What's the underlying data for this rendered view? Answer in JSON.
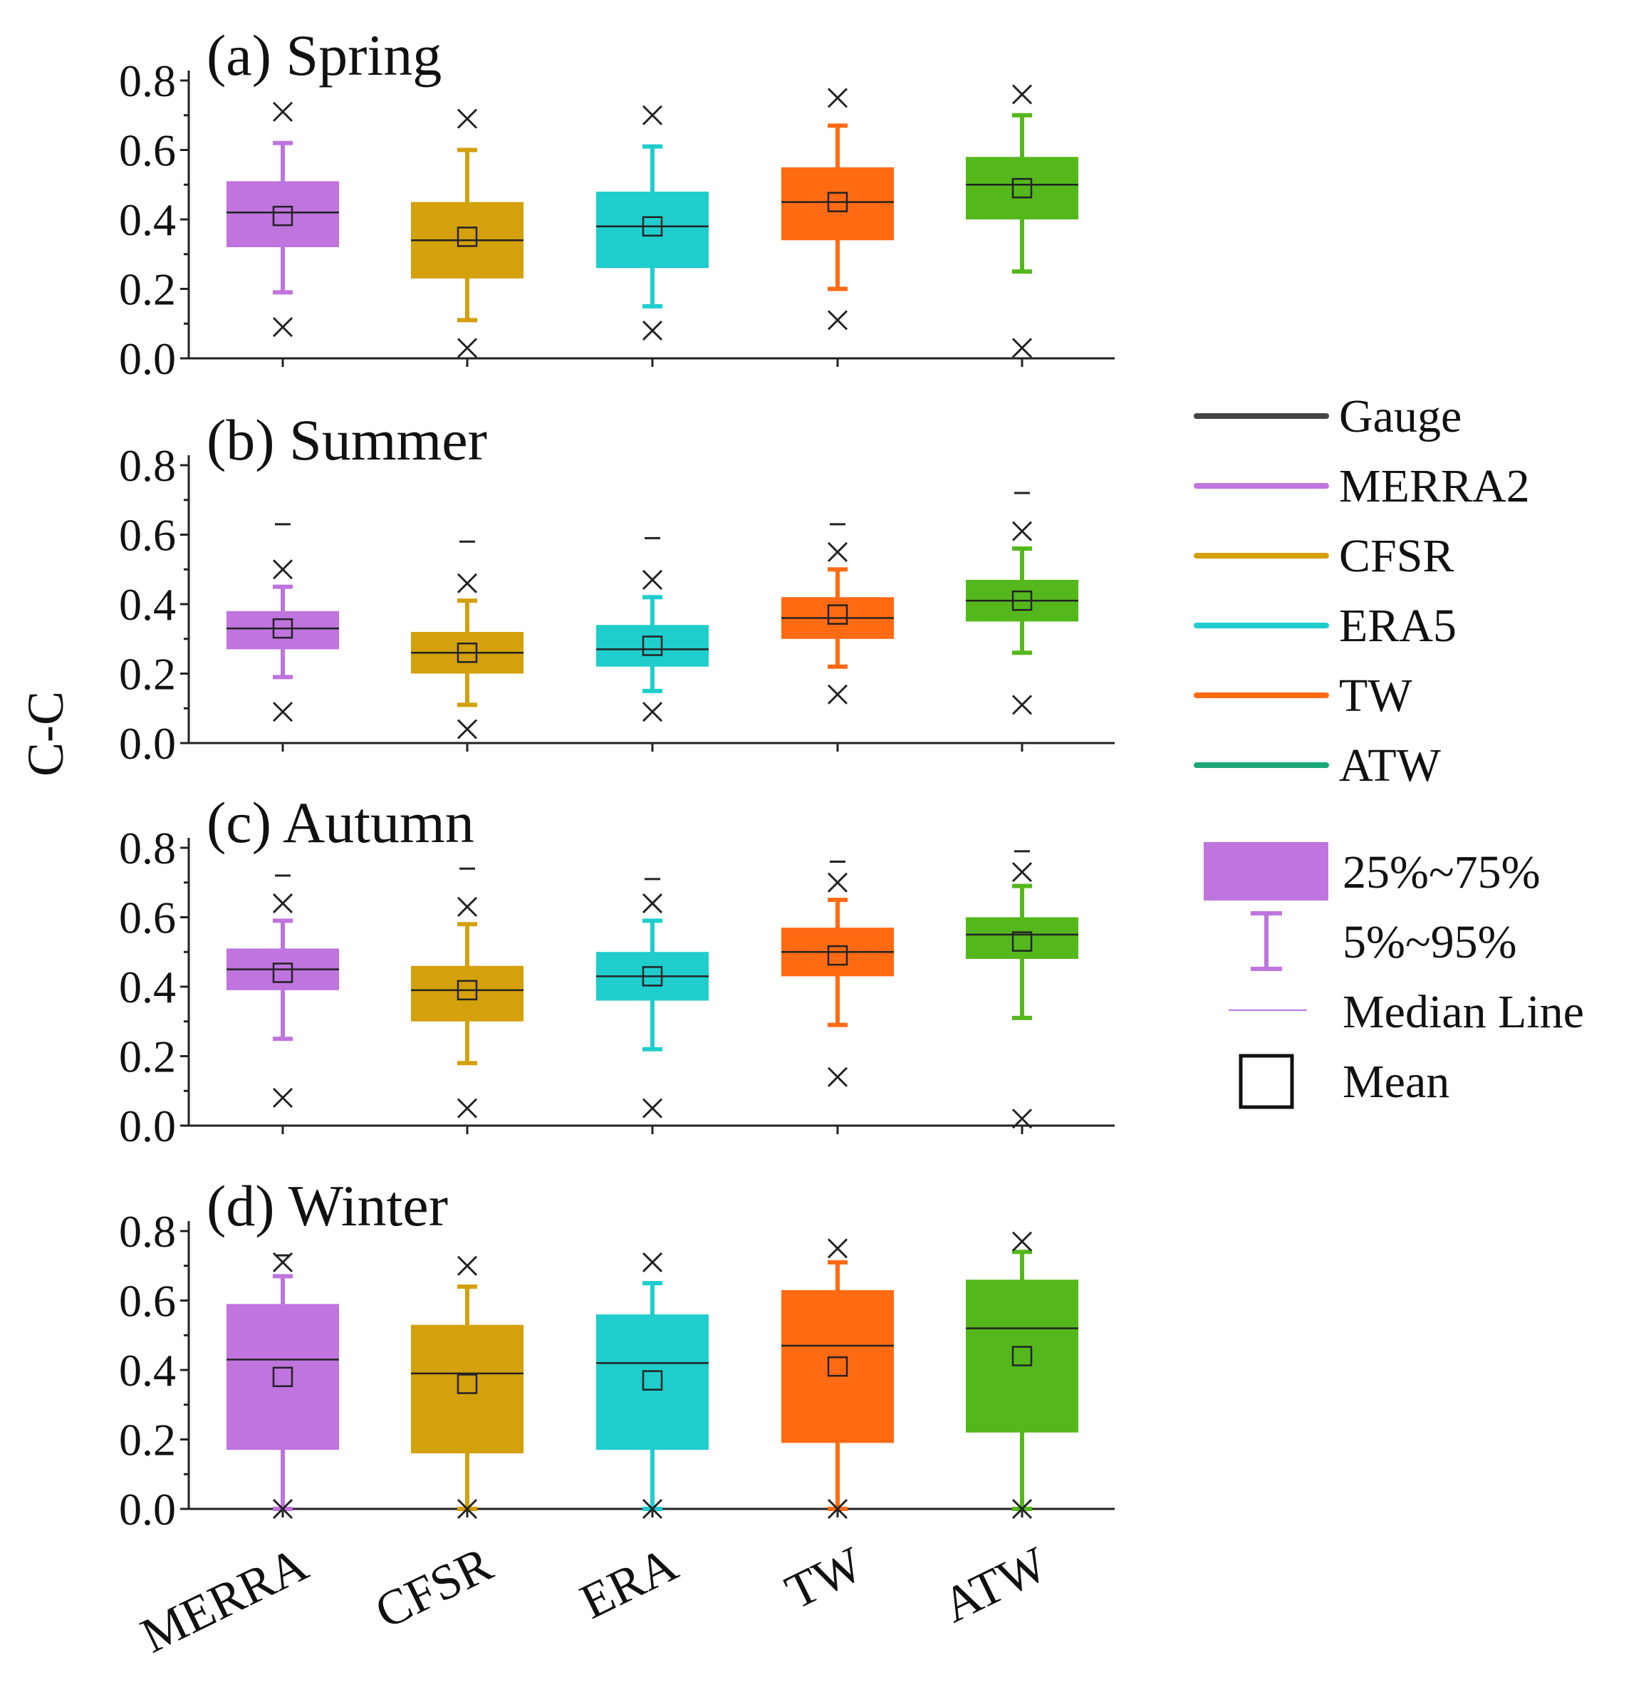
{
  "chart_data": {
    "type": "box",
    "ylabel": "C-C",
    "ylim": [
      0,
      0.8
    ],
    "yticks": [
      "0.0",
      "0.2",
      "0.4",
      "0.6",
      "0.8"
    ],
    "categories": [
      "MERRA",
      "CFSR",
      "ERA",
      "TW",
      "ATW"
    ],
    "colors": [
      "#bf74de",
      "#d4a00b",
      "#1fcdcd",
      "#ff6a12",
      "#54b81c"
    ],
    "panels": [
      {
        "title": "(a) Spring",
        "boxes": [
          {
            "q1": 0.32,
            "median": 0.42,
            "q3": 0.51,
            "p5": 0.19,
            "p95": 0.62,
            "mean": 0.41,
            "x_high": 0.71,
            "x_low": 0.09,
            "dash_high": null
          },
          {
            "q1": 0.23,
            "median": 0.34,
            "q3": 0.45,
            "p5": 0.11,
            "p95": 0.6,
            "mean": 0.35,
            "x_high": 0.69,
            "x_low": 0.03,
            "dash_high": null
          },
          {
            "q1": 0.26,
            "median": 0.38,
            "q3": 0.48,
            "p5": 0.15,
            "p95": 0.61,
            "mean": 0.38,
            "x_high": 0.7,
            "x_low": 0.08,
            "dash_high": null
          },
          {
            "q1": 0.34,
            "median": 0.45,
            "q3": 0.55,
            "p5": 0.2,
            "p95": 0.67,
            "mean": 0.45,
            "x_high": 0.75,
            "x_low": 0.11,
            "dash_high": null
          },
          {
            "q1": 0.4,
            "median": 0.5,
            "q3": 0.58,
            "p5": 0.25,
            "p95": 0.7,
            "mean": 0.49,
            "x_high": 0.76,
            "x_low": 0.03,
            "dash_high": null
          }
        ]
      },
      {
        "title": "(b) Summer",
        "boxes": [
          {
            "q1": 0.27,
            "median": 0.33,
            "q3": 0.38,
            "p5": 0.19,
            "p95": 0.45,
            "mean": 0.33,
            "x_high": 0.5,
            "x_low": 0.09,
            "dash_high": 0.63
          },
          {
            "q1": 0.2,
            "median": 0.26,
            "q3": 0.32,
            "p5": 0.11,
            "p95": 0.41,
            "mean": 0.26,
            "x_high": 0.46,
            "x_low": 0.04,
            "dash_high": 0.58
          },
          {
            "q1": 0.22,
            "median": 0.27,
            "q3": 0.34,
            "p5": 0.15,
            "p95": 0.42,
            "mean": 0.28,
            "x_high": 0.47,
            "x_low": 0.09,
            "dash_high": 0.59
          },
          {
            "q1": 0.3,
            "median": 0.36,
            "q3": 0.42,
            "p5": 0.22,
            "p95": 0.5,
            "mean": 0.37,
            "x_high": 0.55,
            "x_low": 0.14,
            "dash_high": 0.63
          },
          {
            "q1": 0.35,
            "median": 0.41,
            "q3": 0.47,
            "p5": 0.26,
            "p95": 0.56,
            "mean": 0.41,
            "x_high": 0.61,
            "x_low": 0.11,
            "dash_high": 0.72
          }
        ]
      },
      {
        "title": "(c) Autumn",
        "boxes": [
          {
            "q1": 0.39,
            "median": 0.45,
            "q3": 0.51,
            "p5": 0.25,
            "p95": 0.59,
            "mean": 0.44,
            "x_high": 0.64,
            "x_low": 0.08,
            "dash_high": 0.72
          },
          {
            "q1": 0.3,
            "median": 0.39,
            "q3": 0.46,
            "p5": 0.18,
            "p95": 0.58,
            "mean": 0.39,
            "x_high": 0.63,
            "x_low": 0.05,
            "dash_high": 0.74
          },
          {
            "q1": 0.36,
            "median": 0.43,
            "q3": 0.5,
            "p5": 0.22,
            "p95": 0.59,
            "mean": 0.43,
            "x_high": 0.64,
            "x_low": 0.05,
            "dash_high": 0.71
          },
          {
            "q1": 0.43,
            "median": 0.5,
            "q3": 0.57,
            "p5": 0.29,
            "p95": 0.65,
            "mean": 0.49,
            "x_high": 0.7,
            "x_low": 0.14,
            "dash_high": 0.76
          },
          {
            "q1": 0.48,
            "median": 0.55,
            "q3": 0.6,
            "p5": 0.31,
            "p95": 0.69,
            "mean": 0.53,
            "x_high": 0.73,
            "x_low": 0.02,
            "dash_high": 0.79
          }
        ]
      },
      {
        "title": "(d) Winter",
        "boxes": [
          {
            "q1": 0.17,
            "median": 0.43,
            "q3": 0.59,
            "p5": 0.0,
            "p95": 0.67,
            "mean": 0.38,
            "x_high": 0.71,
            "x_low": 0.0,
            "dash_high": 0.73
          },
          {
            "q1": 0.16,
            "median": 0.39,
            "q3": 0.53,
            "p5": 0.0,
            "p95": 0.64,
            "mean": 0.36,
            "x_high": 0.7,
            "x_low": 0.0,
            "dash_high": null
          },
          {
            "q1": 0.17,
            "median": 0.42,
            "q3": 0.56,
            "p5": 0.0,
            "p95": 0.65,
            "mean": 0.37,
            "x_high": 0.71,
            "x_low": 0.0,
            "dash_high": null
          },
          {
            "q1": 0.19,
            "median": 0.47,
            "q3": 0.63,
            "p5": 0.0,
            "p95": 0.71,
            "mean": 0.41,
            "x_high": 0.75,
            "x_low": 0.0,
            "dash_high": null
          },
          {
            "q1": 0.22,
            "median": 0.52,
            "q3": 0.66,
            "p5": 0.0,
            "p95": 0.74,
            "mean": 0.44,
            "x_high": 0.77,
            "x_low": 0.0,
            "dash_high": null
          }
        ]
      }
    ],
    "legend": {
      "position": "right",
      "series": [
        {
          "label": "Gauge",
          "color": "#444444"
        },
        {
          "label": "MERRA2",
          "color": "#bf74de"
        },
        {
          "label": "CFSR",
          "color": "#d4a00b"
        },
        {
          "label": "ERA5",
          "color": "#1fcdcd"
        },
        {
          "label": "TW",
          "color": "#ff6a12"
        },
        {
          "label": "ATW",
          "color": "#1aa87a"
        }
      ],
      "box_key": {
        "iqr_label": "25%~75%",
        "whisker_label": "5%~95%",
        "median_label": "Median Line",
        "mean_label": "Mean",
        "color": "#bf74de"
      }
    }
  }
}
